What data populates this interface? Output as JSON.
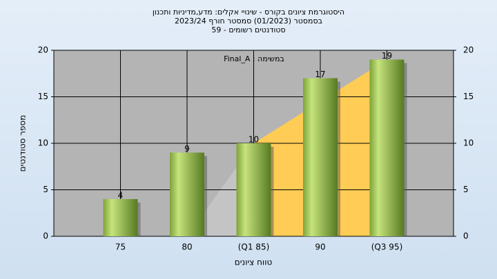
{
  "chart_data": {
    "type": "bar",
    "title": "היסטוגרמת ציונים בקורס - שינויי אקלים: מדע,מדיניות ותכנון",
    "subtitle": "בסמסטר (01/2023) סמסטר חורף 2023/24",
    "subtitle2": "סטודנטים רשומים - 59",
    "annotation": "במשימה : Final_A",
    "x_label": "טווח ציונים",
    "y_label": "מספר סטודנטים",
    "categories": [
      "75",
      "80",
      "(Q1 85)",
      "90",
      "(Q3 95)"
    ],
    "values": [
      4,
      9,
      10,
      17,
      19
    ],
    "color": "#9cc24a",
    "area": {
      "values": [
        null,
        0,
        10,
        14.5,
        19
      ],
      "colors": [
        "#c4c4c4",
        "#ffcc55"
      ]
    },
    "ylim": [
      0,
      20
    ],
    "yticks": [
      0,
      5,
      10,
      15,
      20
    ],
    "y2lim": [
      0,
      20
    ],
    "y2ticks": [
      0,
      5,
      10,
      15,
      20
    ],
    "grid": true
  }
}
